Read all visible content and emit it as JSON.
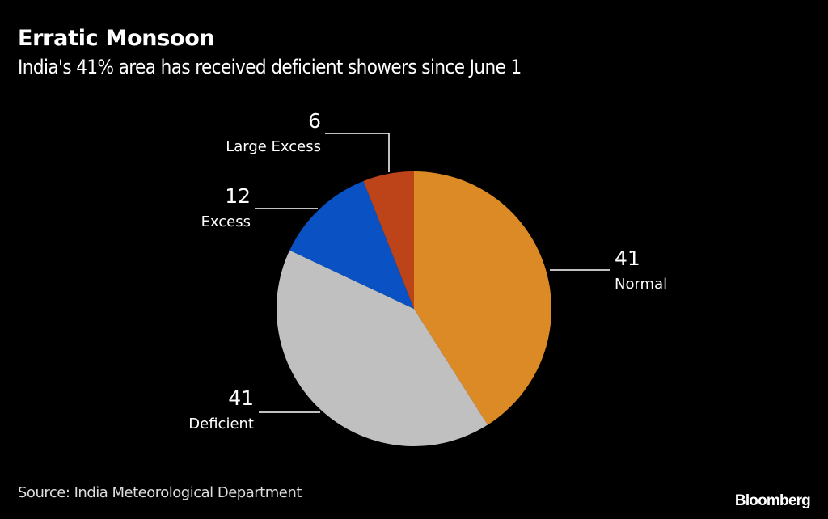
{
  "chart_data": {
    "type": "pie",
    "title": "Erratic Monsoon",
    "subtitle": "India's 41% area has received deficient showers since June 1",
    "unit": "% of area",
    "start_angle_deg": 0,
    "direction": "clockwise",
    "slices": [
      {
        "label": "Normal",
        "value": 41,
        "color": "#DC8A26"
      },
      {
        "label": "Deficient",
        "value": 41,
        "color": "#C0C0C0"
      },
      {
        "label": "Excess",
        "value": 12,
        "color": "#0A52C4"
      },
      {
        "label": "Large Excess",
        "value": 6,
        "color": "#BD4418"
      }
    ],
    "source": "Source: India Meteorological Department"
  },
  "branding": {
    "logo_text": "Bloomberg"
  }
}
